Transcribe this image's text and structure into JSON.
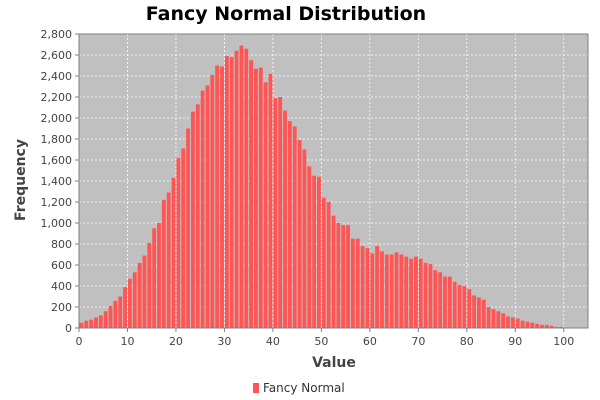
{
  "chart_data": {
    "type": "bar",
    "title": "Fancy Normal Distribution",
    "xlabel": "Value",
    "ylabel": "Frequency",
    "xlim": [
      0,
      105
    ],
    "ylim": [
      0,
      2800
    ],
    "x_ticks": [
      0,
      10,
      20,
      30,
      40,
      50,
      60,
      70,
      80,
      90,
      100
    ],
    "y_ticks": [
      0,
      200,
      400,
      600,
      800,
      1000,
      1200,
      1400,
      1600,
      1800,
      2000,
      2200,
      2400,
      2600,
      2800
    ],
    "grid": true,
    "legend_position": "bottom",
    "colors": {
      "bar": "#ff5555",
      "plot_background": "#c0c0c0",
      "grid": "#ffffff"
    },
    "series": [
      {
        "name": "Fancy Normal",
        "bin_width": 1,
        "bin_start": 0,
        "values": [
          50,
          70,
          80,
          100,
          120,
          160,
          210,
          260,
          300,
          390,
          470,
          530,
          620,
          690,
          810,
          950,
          1000,
          1220,
          1290,
          1430,
          1620,
          1710,
          1900,
          2060,
          2130,
          2260,
          2310,
          2410,
          2500,
          2490,
          2590,
          2580,
          2640,
          2690,
          2660,
          2550,
          2470,
          2480,
          2340,
          2420,
          2190,
          2200,
          2070,
          1970,
          1920,
          1790,
          1700,
          1540,
          1450,
          1440,
          1240,
          1200,
          1070,
          1000,
          980,
          980,
          850,
          850,
          780,
          760,
          710,
          780,
          730,
          700,
          700,
          720,
          700,
          680,
          660,
          680,
          660,
          620,
          610,
          550,
          530,
          490,
          490,
          440,
          410,
          400,
          370,
          310,
          290,
          270,
          200,
          180,
          160,
          140,
          110,
          100,
          90,
          70,
          60,
          50,
          40,
          30,
          30,
          20,
          10,
          10,
          5
        ]
      }
    ]
  }
}
